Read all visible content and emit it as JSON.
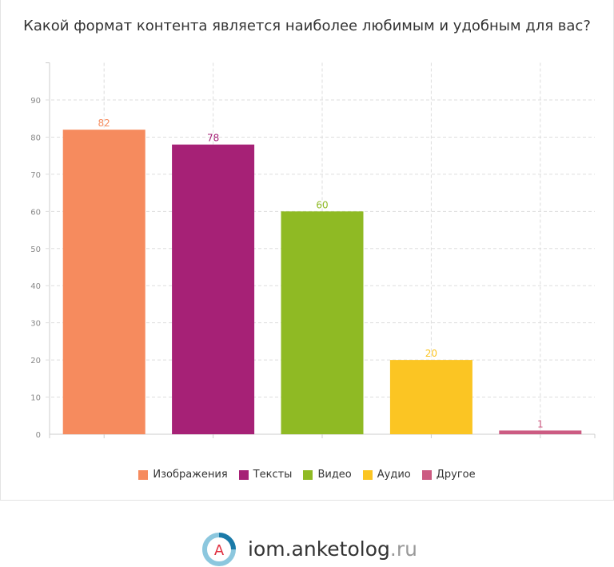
{
  "chart_data": {
    "type": "bar",
    "title": "Какой формат контента является наиболее любимым и удобным для вас?",
    "categories": [
      "Изображения",
      "Тексты",
      "Видео",
      "Аудио",
      "Другое"
    ],
    "values": [
      82,
      78,
      60,
      20,
      1
    ],
    "colors": [
      "#f68b5e",
      "#a62176",
      "#8fba24",
      "#fbc523",
      "#cc5b82"
    ],
    "ylim": [
      0,
      100
    ],
    "yticks": [
      0,
      10,
      20,
      30,
      40,
      50,
      60,
      70,
      80,
      90
    ],
    "grid": true,
    "legend": "bottom"
  },
  "footer": {
    "logo_main": "iom.anketolog",
    "logo_tld": ".ru",
    "logo_letter": "A"
  }
}
